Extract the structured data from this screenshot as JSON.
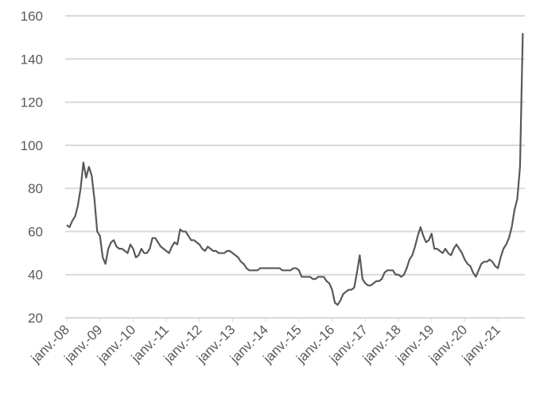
{
  "chart_data": {
    "type": "line",
    "categories": [
      "janv.-08",
      null,
      null,
      null,
      null,
      null,
      null,
      null,
      null,
      null,
      null,
      null,
      "janv.-09",
      null,
      null,
      null,
      null,
      null,
      null,
      null,
      null,
      null,
      null,
      null,
      "janv.-10",
      null,
      null,
      null,
      null,
      null,
      null,
      null,
      null,
      null,
      null,
      null,
      "janv.-11",
      null,
      null,
      null,
      null,
      null,
      null,
      null,
      null,
      null,
      null,
      null,
      "janv.-12",
      null,
      null,
      null,
      null,
      null,
      null,
      null,
      null,
      null,
      null,
      null,
      "janv.-13",
      null,
      null,
      null,
      null,
      null,
      null,
      null,
      null,
      null,
      null,
      null,
      "janv.-14",
      null,
      null,
      null,
      null,
      null,
      null,
      null,
      null,
      null,
      null,
      null,
      "janv.-15",
      null,
      null,
      null,
      null,
      null,
      null,
      null,
      null,
      null,
      null,
      null,
      "janv.-16",
      null,
      null,
      null,
      null,
      null,
      null,
      null,
      null,
      null,
      null,
      null,
      "janv.-17",
      null,
      null,
      null,
      null,
      null,
      null,
      null,
      null,
      null,
      null,
      null,
      "janv.-18",
      null,
      null,
      null,
      null,
      null,
      null,
      null,
      null,
      null,
      null,
      null,
      "janv.-19",
      null,
      null,
      null,
      null,
      null,
      null,
      null,
      null,
      null,
      null,
      null,
      "janv.-20",
      null,
      null,
      null,
      null,
      null,
      null,
      null,
      null,
      null,
      null,
      null,
      "janv.-21",
      null,
      null,
      null,
      null,
      null,
      null,
      null,
      null,
      null
    ],
    "values": [
      63,
      62,
      65,
      67,
      72,
      80,
      92,
      85,
      90,
      86,
      75,
      60,
      58,
      48,
      45,
      52,
      55,
      56,
      53,
      52,
      52,
      51,
      50,
      54,
      52,
      48,
      49,
      52,
      50,
      50,
      52,
      57,
      57,
      55,
      53,
      52,
      51,
      50,
      53,
      55,
      54,
      61,
      60,
      60,
      58,
      56,
      56,
      55,
      54,
      52,
      51,
      53,
      52,
      51,
      51,
      50,
      50,
      50,
      51,
      51,
      50,
      49,
      48,
      46,
      45,
      43,
      42,
      42,
      42,
      42,
      43,
      43,
      43,
      43,
      43,
      43,
      43,
      43,
      42,
      42,
      42,
      42,
      43,
      43,
      42,
      39,
      39,
      39,
      39,
      38,
      38,
      39,
      39,
      39,
      37,
      36,
      33,
      27,
      26,
      28,
      31,
      32,
      33,
      33,
      34,
      41,
      49,
      38,
      36,
      35,
      35,
      36,
      37,
      37,
      38,
      41,
      42,
      42,
      42,
      40,
      40,
      39,
      40,
      43,
      47,
      49,
      53,
      58,
      62,
      58,
      55,
      56,
      59,
      52,
      52,
      51,
      50,
      52,
      50,
      49,
      52,
      54,
      52,
      50,
      47,
      45,
      44,
      41,
      39,
      42,
      45,
      46,
      46,
      47,
      46,
      44,
      43,
      48,
      52,
      54,
      57,
      62,
      70,
      75,
      90,
      152
    ],
    "color": "#595959",
    "ylim": [
      20,
      160
    ],
    "yticks": [
      20,
      40,
      60,
      80,
      100,
      120,
      140,
      160
    ],
    "grid": true
  }
}
